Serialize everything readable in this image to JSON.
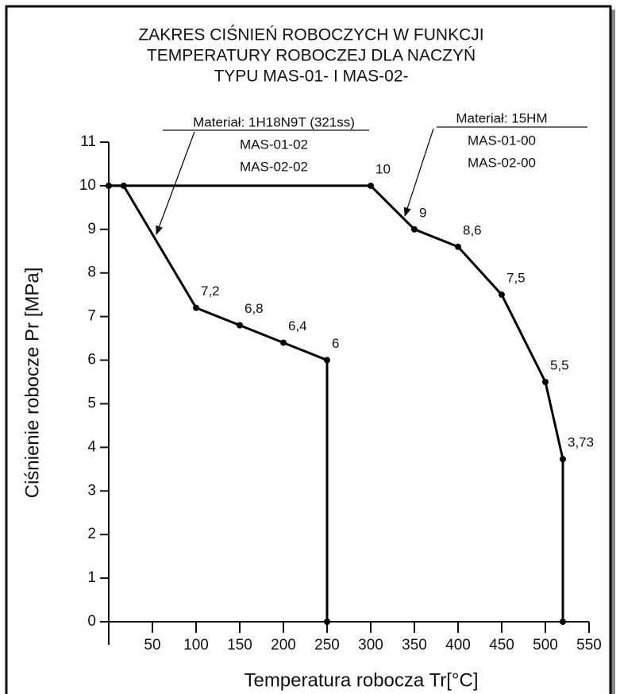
{
  "chart_data": {
    "type": "line",
    "title": [
      "ZAKRES CIŚNIEŃ ROBOCZYCH W FUNKCJI",
      "TEMPERATURY ROBOCZEJ DLA NACZYŃ",
      "TYPU MAS-01- I MAS-02-"
    ],
    "x_label": "Temperatura robocza Tr[°C]",
    "y_label": "Ciśnienie robocze Pr [MPa]",
    "xlim": [
      0,
      550
    ],
    "xticks": [
      50,
      100,
      150,
      200,
      250,
      300,
      350,
      400,
      450,
      500,
      550
    ],
    "ylim": [
      0,
      11
    ],
    "yticks": [
      0,
      1,
      2,
      3,
      4,
      5,
      6,
      7,
      8,
      9,
      10,
      11
    ],
    "color": "#000000",
    "series": [
      {
        "x": [
          0,
          17,
          100,
          150,
          200,
          250,
          250
        ],
        "values": [
          10,
          10,
          7.2,
          6.8,
          6.4,
          6,
          0
        ],
        "value_labels": [
          null,
          null,
          "7,2",
          "6,8",
          "6,4",
          "6",
          null
        ]
      },
      {
        "x": [
          0,
          300,
          350,
          400,
          450,
          500,
          520,
          520
        ],
        "values": [
          10,
          10,
          9,
          8.6,
          7.5,
          5.5,
          3.73,
          0
        ],
        "value_labels": [
          null,
          "10",
          "9",
          "8,6",
          "7,5",
          "5,5",
          "3,73",
          null
        ]
      }
    ],
    "annotations": [
      {
        "lines": [
          "Materiał: 1H18N9T (321ss)",
          "MAS-01-02",
          "MAS-02-02"
        ]
      },
      {
        "lines": [
          "Materiał: 15HM",
          "MAS-01-00",
          "MAS-02-00"
        ]
      }
    ]
  }
}
